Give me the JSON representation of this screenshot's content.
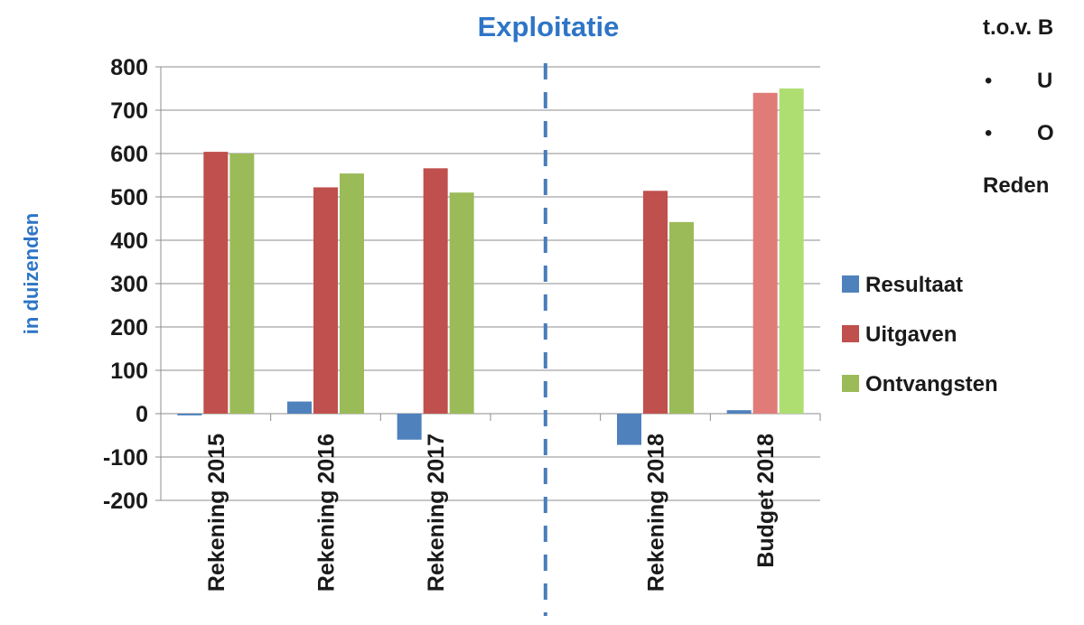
{
  "chart_data": {
    "type": "bar",
    "title": "Exploitatie",
    "ylabel": "in duizenden",
    "xlabel": "",
    "ylim": [
      -200,
      800
    ],
    "yticks": [
      -200,
      -100,
      0,
      100,
      200,
      300,
      400,
      500,
      600,
      700,
      800
    ],
    "categories": [
      "Rekening 2015",
      "Rekening 2016",
      "Rekening 2017",
      "",
      "Rekening 2018",
      "Budget 2018"
    ],
    "series": [
      {
        "name": "Resultaat",
        "color": "#4f81bd",
        "values": [
          -4,
          28,
          -60,
          null,
          -72,
          8
        ]
      },
      {
        "name": "Uitgaven",
        "color": "#c0504d",
        "highlight_color": "#e07b78",
        "values": [
          604,
          522,
          566,
          null,
          514,
          740
        ]
      },
      {
        "name": "Ontvangsten",
        "color": "#9bbb59",
        "highlight_color": "#aede72",
        "values": [
          600,
          554,
          510,
          null,
          442,
          750
        ]
      }
    ],
    "highlight_category": "Budget 2018",
    "divider_after_category": "Rekening 2017",
    "grid": true,
    "legend_position": "right"
  },
  "side_panel": {
    "line1": "t.o.v. B",
    "bullet1": "U",
    "bullet2": "O",
    "line4": "Reden"
  },
  "colors": {
    "title": "#2e75c6",
    "ylabel": "#2e75c6",
    "divider": "#4a7ebb"
  }
}
